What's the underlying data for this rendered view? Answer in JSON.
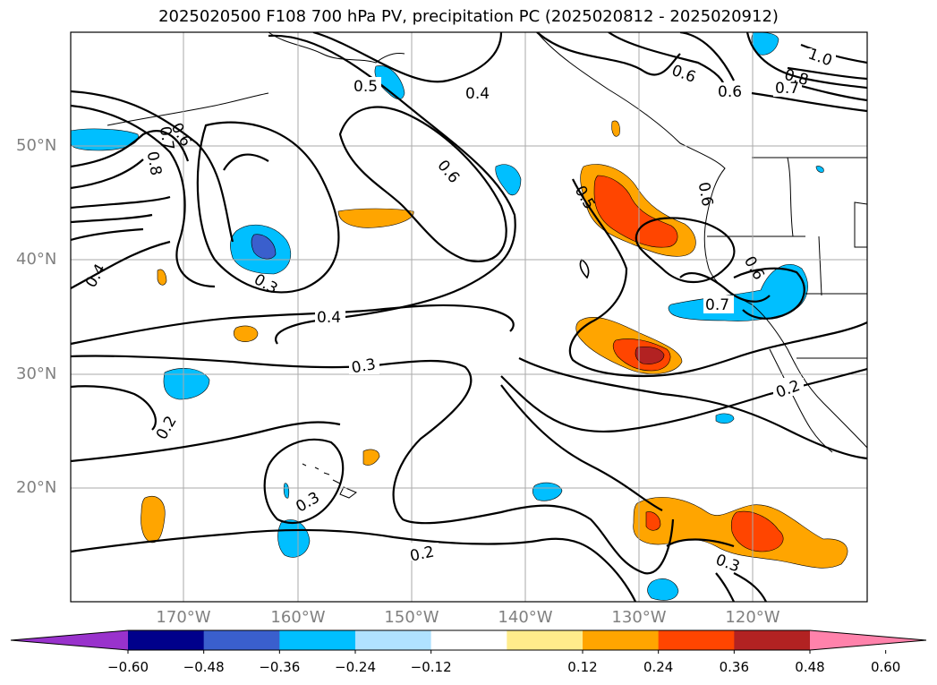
{
  "title": "2025020500 F108 700 hPa PV, precipitation PC (2025020812 - 2025020912)",
  "map": {
    "lat_labels": [
      "50°N",
      "40°N",
      "30°N",
      "20°N"
    ],
    "lon_labels": [
      "170°W",
      "160°W",
      "150°W",
      "140°W",
      "130°W",
      "120°W"
    ]
  },
  "contour_labels": [
    "0.5",
    "0.4",
    "0.6",
    "0.6",
    "0.7",
    "0.8",
    "1.0",
    "0.6",
    "0.7",
    "0.8",
    "0.6",
    "0.5",
    "0.6",
    "0.4",
    "0.3",
    "0.4",
    "0.3",
    "0.2",
    "0.3",
    "0.2",
    "0.7",
    "0.6",
    "0.2",
    "0.3"
  ],
  "colorbar": {
    "ticks": [
      "−0.60",
      "−0.48",
      "−0.36",
      "−0.24",
      "−0.12",
      "0.12",
      "0.24",
      "0.36",
      "0.48",
      "0.60"
    ],
    "colors": [
      "#9932cc",
      "#00008b",
      "#3a5fcd",
      "#00bfff",
      "#b0e2ff",
      "#ffffff",
      "#ffec8b",
      "#ffa500",
      "#ff4500",
      "#b22222",
      "#ff82ab"
    ]
  }
}
